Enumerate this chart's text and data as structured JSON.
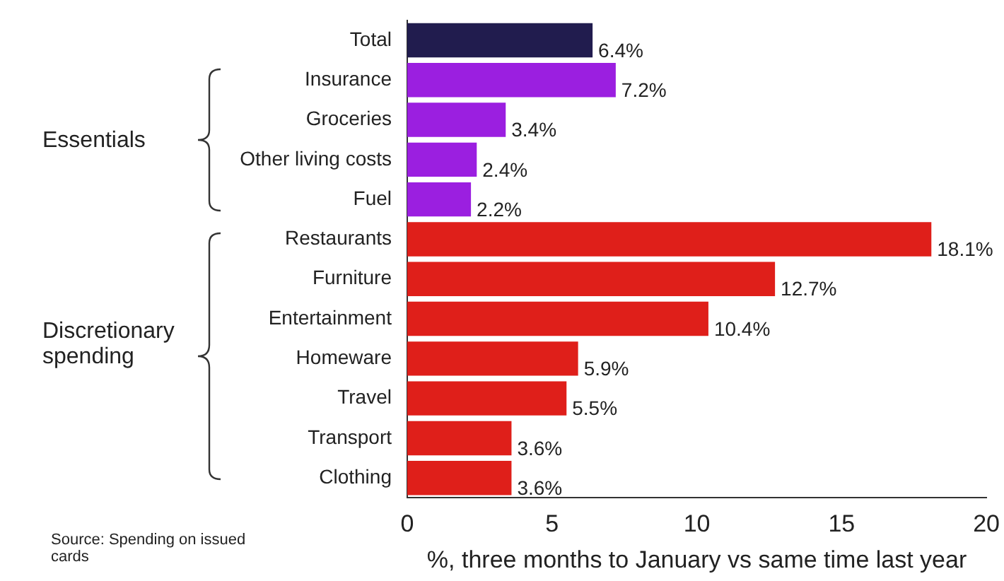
{
  "chart_data": {
    "type": "bar",
    "orientation": "horizontal",
    "categories": [
      "Total",
      "Insurance",
      "Groceries",
      "Other living costs",
      "Fuel",
      "Restaurants",
      "Furniture",
      "Entertainment",
      "Homeware",
      "Travel",
      "Transport",
      "Clothing"
    ],
    "values": [
      6.4,
      7.2,
      3.4,
      2.4,
      2.2,
      18.1,
      12.7,
      10.4,
      5.9,
      5.5,
      3.6,
      3.6
    ],
    "value_labels": [
      "6.4%",
      "7.2%",
      "3.4%",
      "2.4%",
      "2.2%",
      "18.1%",
      "12.7%",
      "10.4%",
      "5.9%",
      "5.5%",
      "3.6%",
      "3.6%"
    ],
    "colors": [
      "#211c4e",
      "#9b1fe0",
      "#9b1fe0",
      "#9b1fe0",
      "#9b1fe0",
      "#df1f1a",
      "#df1f1a",
      "#df1f1a",
      "#df1f1a",
      "#df1f1a",
      "#df1f1a",
      "#df1f1a"
    ],
    "xlim": [
      0,
      20
    ],
    "xticks": [
      0,
      5,
      10,
      15,
      20
    ],
    "xlabel": "%, three months to January vs same time last year",
    "annotations": [
      "Essentials",
      "Discretionary spending",
      "Source: Spending on issued cards"
    ]
  }
}
